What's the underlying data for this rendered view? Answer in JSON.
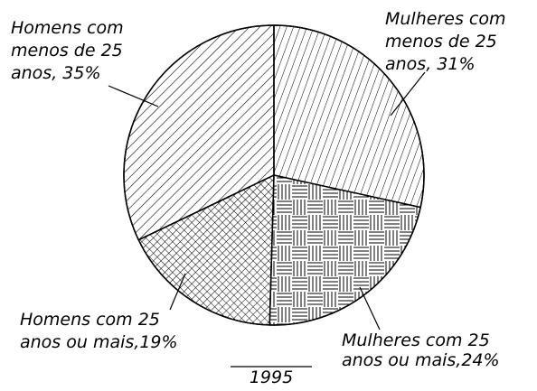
{
  "chart_data": {
    "type": "pie",
    "title": "1995",
    "categories": [
      "Mulheres com menos de 25 anos",
      "Mulheres com 25 anos ou mais",
      "Homens com 25 anos ou mais",
      "Homens com menos de 25 anos"
    ],
    "values": [
      31,
      24,
      19,
      35
    ],
    "value_labels": [
      [
        "Mulheres com",
        "menos de 25",
        "anos, 31%"
      ],
      [
        "Mulheres com 25",
        "anos ou mais,24%"
      ],
      [
        "Homens com 25",
        "anos ou mais,19%"
      ],
      [
        "Homens com",
        "menos de 25",
        "anos, 35%"
      ]
    ],
    "color": "#000000"
  }
}
